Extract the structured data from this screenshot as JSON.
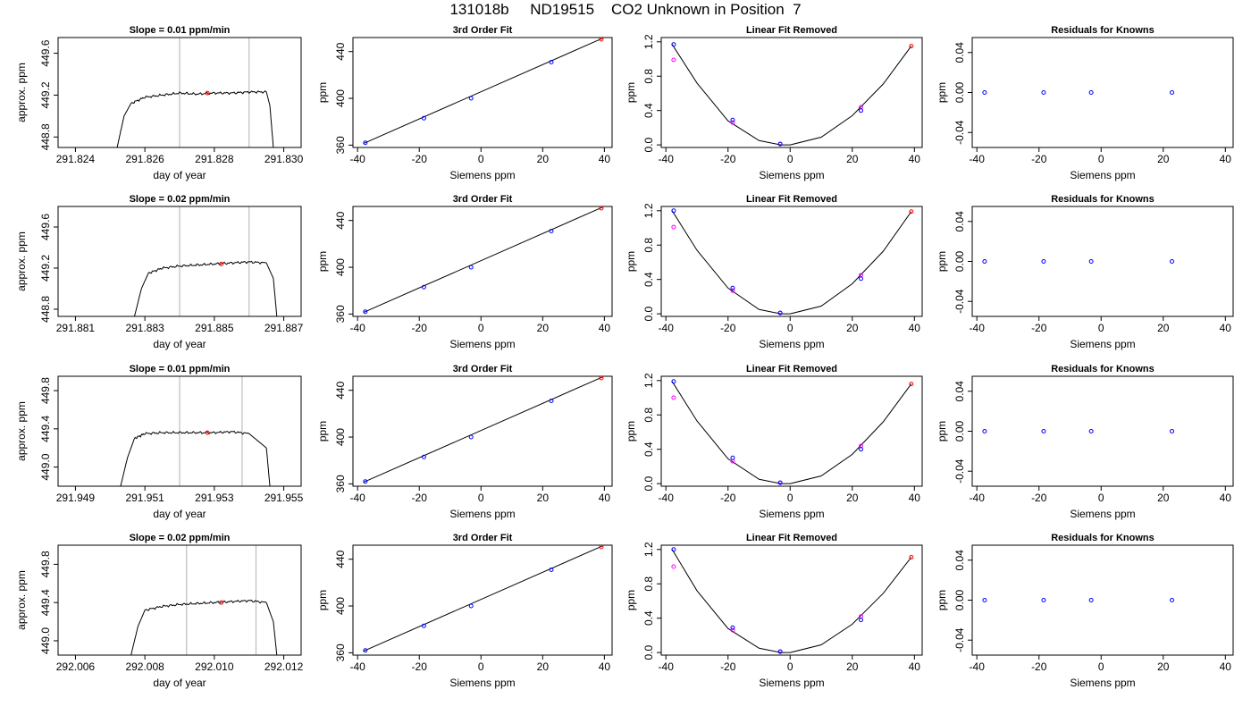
{
  "title": "131018b     ND19515    CO2 Unknown in Position  7",
  "chart_data": [
    {
      "type": "line",
      "title": "Slope =  0.01  ppm/min",
      "xlabel": "day of year",
      "ylabel": "approx. ppm",
      "xlim": [
        291.8235,
        291.8305
      ],
      "ylim": [
        448.7,
        449.75
      ],
      "xticks": [
        "291.824",
        "291.826",
        "291.828",
        "291.830"
      ],
      "yticks": [
        "448.8",
        "449.2",
        "449.6"
      ],
      "vlines": [
        291.827,
        291.829
      ],
      "series": [
        {
          "x": [
            291.8252,
            291.8254,
            291.8256,
            291.826,
            291.8265,
            291.827,
            291.8275,
            291.828,
            291.8285,
            291.829,
            291.8295,
            291.8296,
            291.8297
          ],
          "values": [
            448.7,
            449.0,
            449.12,
            449.18,
            449.2,
            449.22,
            449.21,
            449.22,
            449.22,
            449.23,
            449.23,
            449.1,
            448.7
          ]
        }
      ],
      "marker": {
        "x": 291.8278,
        "y": 449.22
      }
    },
    {
      "type": "line",
      "title": "Slope =  0.02  ppm/min",
      "xlabel": "day of year",
      "ylabel": "approx. ppm",
      "xlim": [
        291.8805,
        291.8875
      ],
      "ylim": [
        448.73,
        449.8
      ],
      "xticks": [
        "291.881",
        "291.883",
        "291.885",
        "291.887"
      ],
      "yticks": [
        "448.8",
        "449.2",
        "449.6"
      ],
      "vlines": [
        291.884,
        291.886
      ],
      "series": [
        {
          "x": [
            291.8827,
            291.8829,
            291.8831,
            291.8835,
            291.884,
            291.8845,
            291.885,
            291.8855,
            291.886,
            291.8865,
            291.8867,
            291.8868
          ],
          "values": [
            448.73,
            449.0,
            449.15,
            449.2,
            449.22,
            449.23,
            449.24,
            449.25,
            449.26,
            449.25,
            449.1,
            448.73
          ]
        }
      ],
      "marker": {
        "x": 291.8852,
        "y": 449.24
      }
    },
    {
      "type": "line",
      "title": "Slope =  0.01  ppm/min",
      "xlabel": "day of year",
      "ylabel": "approx. ppm",
      "xlim": [
        291.9485,
        291.9555
      ],
      "ylim": [
        448.8,
        449.95
      ],
      "xticks": [
        "291.949",
        "291.951",
        "291.953",
        "291.955"
      ],
      "yticks": [
        "449.0",
        "449.4",
        "449.8"
      ],
      "vlines": [
        291.952,
        291.9538
      ],
      "series": [
        {
          "x": [
            291.9503,
            291.9505,
            291.9507,
            291.951,
            291.9515,
            291.952,
            291.9525,
            291.953,
            291.9535,
            291.954,
            291.9545,
            291.9546
          ],
          "values": [
            448.8,
            449.1,
            449.3,
            449.35,
            449.36,
            449.36,
            449.36,
            449.36,
            449.37,
            449.35,
            449.2,
            448.8
          ]
        }
      ],
      "marker": {
        "x": 291.9528,
        "y": 449.36
      }
    },
    {
      "type": "line",
      "title": "Slope =  0.02  ppm/min",
      "xlabel": "day of year",
      "ylabel": "approx. ppm",
      "xlim": [
        292.0055,
        292.0125
      ],
      "ylim": [
        448.85,
        450.0
      ],
      "xticks": [
        "292.006",
        "292.008",
        "292.010",
        "292.012"
      ],
      "yticks": [
        "449.0",
        "449.4",
        "449.8"
      ],
      "vlines": [
        292.0092,
        292.0112
      ],
      "series": [
        {
          "x": [
            292.0076,
            292.0078,
            292.008,
            292.0085,
            292.009,
            292.0095,
            292.01,
            292.0105,
            292.011,
            292.0115,
            292.0117,
            292.0118
          ],
          "values": [
            448.85,
            449.15,
            449.32,
            449.36,
            449.38,
            449.39,
            449.4,
            449.41,
            449.42,
            449.4,
            449.2,
            448.85
          ]
        }
      ],
      "marker": {
        "x": 292.0102,
        "y": 449.4
      }
    },
    {
      "type": "line",
      "title": "3rd Order Fit",
      "xlabel": "Siemens ppm",
      "ylabel": "ppm",
      "xlim": [
        -41.5,
        42.5
      ],
      "ylim": [
        358,
        452
      ],
      "xticks": [
        -40,
        -20,
        0,
        20,
        40
      ],
      "yticks": [
        360,
        400,
        440
      ],
      "line": {
        "x": [
          -38,
          39.5
        ],
        "values": [
          361.5,
          451.5
        ]
      },
      "knowns": {
        "x": [
          -37.5,
          -18.5,
          -3.2,
          22.8
        ],
        "values": [
          362,
          383,
          400,
          431
        ]
      },
      "unknown": {
        "x": 39,
        "y": 450.5
      }
    },
    {
      "type": "line",
      "title": "3rd Order Fit",
      "xlabel": "Siemens ppm",
      "ylabel": "ppm",
      "xlim": [
        -41.5,
        42.5
      ],
      "ylim": [
        358,
        452
      ],
      "xticks": [
        -40,
        -20,
        0,
        20,
        40
      ],
      "yticks": [
        360,
        400,
        440
      ],
      "line": {
        "x": [
          -38,
          39.5
        ],
        "values": [
          361.5,
          451.5
        ]
      },
      "knowns": {
        "x": [
          -37.5,
          -18.5,
          -3.2,
          22.8
        ],
        "values": [
          362,
          383,
          400,
          431
        ]
      },
      "unknown": {
        "x": 39,
        "y": 450.5
      }
    },
    {
      "type": "line",
      "title": "3rd Order Fit",
      "xlabel": "Siemens ppm",
      "ylabel": "ppm",
      "xlim": [
        -41.5,
        42.5
      ],
      "ylim": [
        358,
        452
      ],
      "xticks": [
        -40,
        -20,
        0,
        20,
        40
      ],
      "yticks": [
        360,
        400,
        440
      ],
      "line": {
        "x": [
          -38,
          39.5
        ],
        "values": [
          361.5,
          451.5
        ]
      },
      "knowns": {
        "x": [
          -37.5,
          -18.5,
          -3.2,
          22.8
        ],
        "values": [
          362,
          383,
          400,
          431
        ]
      },
      "unknown": {
        "x": 39,
        "y": 450.5
      }
    },
    {
      "type": "line",
      "title": "3rd Order Fit",
      "xlabel": "Siemens ppm",
      "ylabel": "ppm",
      "xlim": [
        -41.5,
        42.5
      ],
      "ylim": [
        358,
        452
      ],
      "xticks": [
        -40,
        -20,
        0,
        20,
        40
      ],
      "yticks": [
        360,
        400,
        440
      ],
      "line": {
        "x": [
          -38,
          39.5
        ],
        "values": [
          361.5,
          451.5
        ]
      },
      "knowns": {
        "x": [
          -37.5,
          -18.5,
          -3.2,
          22.8
        ],
        "values": [
          362,
          383,
          400,
          431
        ]
      },
      "unknown": {
        "x": 39,
        "y": 450.5
      }
    },
    {
      "type": "line",
      "title": "Linear Fit Removed",
      "xlabel": "Siemens ppm",
      "ylabel": "ppm",
      "xlim": [
        -41.5,
        42.5
      ],
      "ylim": [
        -0.03,
        1.25
      ],
      "xticks": [
        -40,
        -20,
        0,
        20,
        40
      ],
      "yticks": [
        "0.0",
        "0.4",
        "0.8",
        "1.2"
      ],
      "curve": {
        "x": [
          -38,
          -30,
          -20,
          -10,
          -3,
          0,
          10,
          20,
          30,
          39
        ],
        "values": [
          1.17,
          0.72,
          0.28,
          0.05,
          0.0,
          0.0,
          0.09,
          0.34,
          0.71,
          1.15
        ]
      },
      "knowns": {
        "x": [
          -37.5,
          -18.5,
          -3.2,
          22.8
        ],
        "values": [
          1.17,
          0.29,
          0.01,
          0.4
        ]
      },
      "knowns_magenta": {
        "x": [
          -37.5,
          -18.5,
          -3.2,
          22.8
        ],
        "values": [
          0.99,
          0.26,
          0.01,
          0.44
        ]
      },
      "unknown": {
        "x": 39,
        "y": 1.15
      }
    },
    {
      "type": "line",
      "title": "Linear Fit Removed",
      "xlabel": "Siemens ppm",
      "ylabel": "ppm",
      "xlim": [
        -41.5,
        42.5
      ],
      "ylim": [
        -0.03,
        1.25
      ],
      "xticks": [
        -40,
        -20,
        0,
        20,
        40
      ],
      "yticks": [
        "0.0",
        "0.4",
        "0.8",
        "1.2"
      ],
      "curve": {
        "x": [
          -38,
          -30,
          -20,
          -10,
          -3,
          0,
          10,
          20,
          30,
          39
        ],
        "values": [
          1.2,
          0.74,
          0.3,
          0.05,
          0.0,
          0.0,
          0.09,
          0.35,
          0.73,
          1.19
        ]
      },
      "knowns": {
        "x": [
          -37.5,
          -18.5,
          -3.2,
          22.8
        ],
        "values": [
          1.2,
          0.3,
          0.01,
          0.41
        ]
      },
      "knowns_magenta": {
        "x": [
          -37.5,
          -18.5,
          -3.2,
          22.8
        ],
        "values": [
          1.01,
          0.27,
          0.01,
          0.45
        ]
      },
      "unknown": {
        "x": 39,
        "y": 1.19
      }
    },
    {
      "type": "line",
      "title": "Linear Fit Removed",
      "xlabel": "Siemens ppm",
      "ylabel": "ppm",
      "xlim": [
        -41.5,
        42.5
      ],
      "ylim": [
        -0.03,
        1.25
      ],
      "xticks": [
        -40,
        -20,
        0,
        20,
        40
      ],
      "yticks": [
        "0.0",
        "0.4",
        "0.8",
        "1.2"
      ],
      "curve": {
        "x": [
          -38,
          -30,
          -20,
          -10,
          -3,
          0,
          10,
          20,
          30,
          39
        ],
        "values": [
          1.19,
          0.73,
          0.29,
          0.05,
          0.0,
          0.0,
          0.09,
          0.34,
          0.72,
          1.16
        ]
      },
      "knowns": {
        "x": [
          -37.5,
          -18.5,
          -3.2,
          22.8
        ],
        "values": [
          1.19,
          0.3,
          0.01,
          0.4
        ]
      },
      "knowns_magenta": {
        "x": [
          -37.5,
          -18.5,
          -3.2,
          22.8
        ],
        "values": [
          1.0,
          0.26,
          0.01,
          0.44
        ]
      },
      "unknown": {
        "x": 39,
        "y": 1.16
      }
    },
    {
      "type": "line",
      "title": "Linear Fit Removed",
      "xlabel": "Siemens ppm",
      "ylabel": "ppm",
      "xlim": [
        -41.5,
        42.5
      ],
      "ylim": [
        -0.03,
        1.25
      ],
      "xticks": [
        -40,
        -20,
        0,
        20,
        40
      ],
      "yticks": [
        "0.0",
        "0.4",
        "0.8",
        "1.2"
      ],
      "curve": {
        "x": [
          -38,
          -30,
          -20,
          -10,
          -3,
          0,
          10,
          20,
          30,
          39
        ],
        "values": [
          1.2,
          0.72,
          0.28,
          0.05,
          0.0,
          0.0,
          0.09,
          0.33,
          0.69,
          1.11
        ]
      },
      "knowns": {
        "x": [
          -37.5,
          -18.5,
          -3.2,
          22.8
        ],
        "values": [
          1.2,
          0.29,
          0.01,
          0.38
        ]
      },
      "knowns_magenta": {
        "x": [
          -37.5,
          -18.5,
          -3.2,
          22.8
        ],
        "values": [
          1.0,
          0.26,
          0.01,
          0.42
        ]
      },
      "unknown": {
        "x": 39,
        "y": 1.11
      }
    },
    {
      "type": "scatter",
      "title": "Residuals for Knowns",
      "xlabel": "Siemens ppm",
      "ylabel": "ppm",
      "xlim": [
        -41.5,
        42.5
      ],
      "ylim": [
        -0.055,
        0.055
      ],
      "xticks": [
        -40,
        -20,
        0,
        20,
        40
      ],
      "yticks": [
        "-0.04",
        "0.00",
        "0.04"
      ],
      "knowns": {
        "x": [
          -37.5,
          -18.5,
          -3.2,
          22.8
        ],
        "values": [
          0,
          0,
          0,
          0
        ]
      }
    },
    {
      "type": "scatter",
      "title": "Residuals for Knowns",
      "xlabel": "Siemens ppm",
      "ylabel": "ppm",
      "xlim": [
        -41.5,
        42.5
      ],
      "ylim": [
        -0.055,
        0.055
      ],
      "xticks": [
        -40,
        -20,
        0,
        20,
        40
      ],
      "yticks": [
        "-0.04",
        "0.00",
        "0.04"
      ],
      "knowns": {
        "x": [
          -37.5,
          -18.5,
          -3.2,
          22.8
        ],
        "values": [
          0,
          0,
          0,
          0
        ]
      }
    },
    {
      "type": "scatter",
      "title": "Residuals for Knowns",
      "xlabel": "Siemens ppm",
      "ylabel": "ppm",
      "xlim": [
        -41.5,
        42.5
      ],
      "ylim": [
        -0.055,
        0.055
      ],
      "xticks": [
        -40,
        -20,
        0,
        20,
        40
      ],
      "yticks": [
        "-0.04",
        "0.00",
        "0.04"
      ],
      "knowns": {
        "x": [
          -37.5,
          -18.5,
          -3.2,
          22.8
        ],
        "values": [
          0,
          0,
          0,
          0
        ]
      }
    },
    {
      "type": "scatter",
      "title": "Residuals for Knowns",
      "xlabel": "Siemens ppm",
      "ylabel": "ppm",
      "xlim": [
        -41.5,
        42.5
      ],
      "ylim": [
        -0.055,
        0.055
      ],
      "xticks": [
        -40,
        -20,
        0,
        20,
        40
      ],
      "yticks": [
        "-0.04",
        "0.00",
        "0.04"
      ],
      "knowns": {
        "x": [
          -37.5,
          -18.5,
          -3.2,
          22.8
        ],
        "values": [
          0,
          0,
          0,
          0
        ]
      }
    }
  ],
  "colors": {
    "axis": "#000000",
    "vline": "#bebebe",
    "known": "#0000ff",
    "known_alt": "#ff00ff",
    "unknown": "#ff0000"
  }
}
